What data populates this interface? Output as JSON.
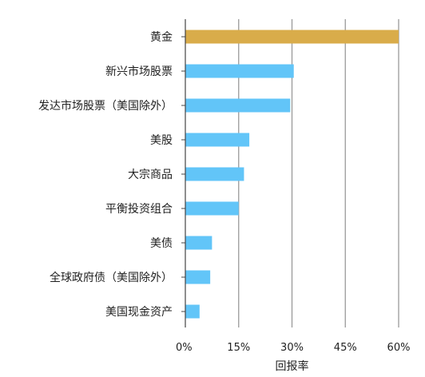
{
  "chart_data": {
    "type": "bar",
    "orientation": "horizontal",
    "categories": [
      "黄金",
      "新兴市场股票",
      "发达市场股票（美国除外）",
      "美股",
      "大宗商品",
      "平衡投资组合",
      "美债",
      "全球政府债（美国除外）",
      "美国现金资产"
    ],
    "values": [
      60,
      30.5,
      29.5,
      18,
      16.5,
      15,
      7.5,
      7,
      4
    ],
    "colors": [
      "#D9AC4A",
      "#62C5F8",
      "#62C5F8",
      "#62C5F8",
      "#62C5F8",
      "#62C5F8",
      "#62C5F8",
      "#62C5F8",
      "#62C5F8"
    ],
    "xlim": [
      0,
      60
    ],
    "xticks": [
      0,
      15,
      30,
      45,
      60
    ],
    "xtick_labels": [
      "0%",
      "15%",
      "30%",
      "45%",
      "60%"
    ],
    "xlabel": "回报率",
    "ylabel": "",
    "title": "",
    "grid": "vertical gridlines",
    "gridline_color": "#9a9a9a"
  }
}
